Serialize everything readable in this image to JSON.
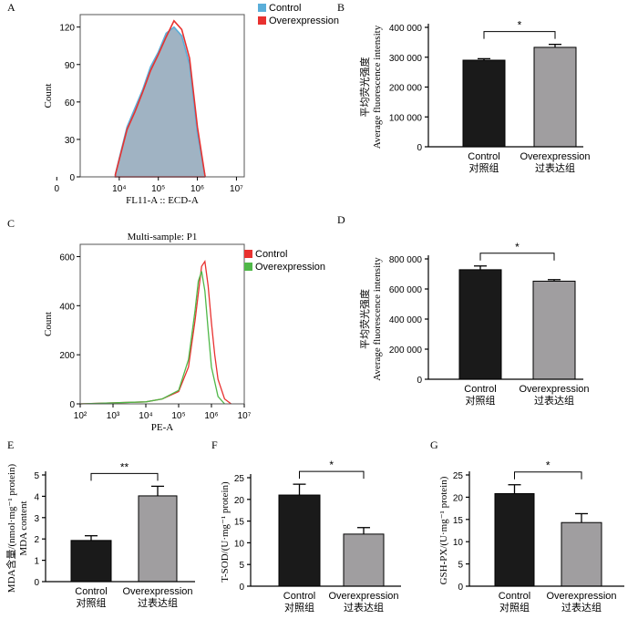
{
  "chart_data": [
    {
      "id": "A",
      "panel_label": "A",
      "type": "area",
      "xlabel": "FL11-A :: ECD-A",
      "ylabel": "Count",
      "x_ticks": [
        "0",
        "10⁴",
        "10⁵",
        "10⁶",
        "10⁷"
      ],
      "y_ticks": [
        0,
        30,
        60,
        90,
        120
      ],
      "ylim": [
        0,
        130
      ],
      "legend": [
        {
          "name": "Control",
          "color": "#5aaed9"
        },
        {
          "name": "Overexpression",
          "color": "#e8312f"
        }
      ],
      "series": [
        {
          "name": "Control",
          "color": "#5aaed9",
          "decades": [
            3.9,
            4.0,
            4.2,
            4.4,
            4.6,
            4.8,
            5.0,
            5.2,
            5.4,
            5.6,
            5.8,
            6.0,
            6.2
          ],
          "counts": [
            2,
            15,
            40,
            55,
            70,
            88,
            100,
            115,
            120,
            113,
            90,
            35,
            0
          ]
        },
        {
          "name": "Overexpression",
          "color": "#e8312f",
          "decades": [
            3.9,
            4.0,
            4.2,
            4.4,
            4.6,
            4.8,
            5.0,
            5.2,
            5.4,
            5.6,
            5.8,
            6.0,
            6.2
          ],
          "counts": [
            2,
            14,
            38,
            52,
            68,
            85,
            98,
            112,
            125,
            118,
            95,
            40,
            0
          ]
        }
      ]
    },
    {
      "id": "B",
      "panel_label": "B",
      "type": "bar",
      "ylabel": "平均荧光强度",
      "ylabel2": "Average fluorescence intensity",
      "y_ticks": [
        "0",
        "100 000",
        "200 000",
        "300 000",
        "400 000"
      ],
      "ylim": [
        0,
        400000
      ],
      "categories": [
        "Control",
        "Overexpression"
      ],
      "categories_cn": [
        "对照组",
        "过表达组"
      ],
      "values": [
        290000,
        333000
      ],
      "errors": [
        5000,
        10000
      ],
      "bar_colors": [
        "#1a1a1a",
        "#a09ea0"
      ],
      "significance": "*"
    },
    {
      "id": "C",
      "panel_label": "C",
      "type": "line",
      "title": "Multi-sample: P1",
      "xlabel": "PE-A",
      "ylabel": "Count",
      "x_ticks": [
        "10²",
        "10³",
        "10⁴",
        "10⁵",
        "10⁶",
        "10⁷"
      ],
      "y_ticks": [
        0,
        200,
        400,
        600
      ],
      "ylim": [
        0,
        650
      ],
      "legend": [
        {
          "name": "Control",
          "color": "#e8312f"
        },
        {
          "name": "Overexpression",
          "color": "#4fb848"
        }
      ],
      "series": [
        {
          "name": "Control",
          "color": "#e8312f",
          "decades": [
            2.0,
            4.0,
            4.5,
            5.0,
            5.3,
            5.5,
            5.7,
            5.8,
            5.9,
            6.0,
            6.1,
            6.2,
            6.4,
            6.6
          ],
          "counts": [
            0,
            8,
            20,
            50,
            150,
            340,
            560,
            580,
            480,
            330,
            200,
            100,
            20,
            0
          ]
        },
        {
          "name": "Overexpression",
          "color": "#4fb848",
          "decades": [
            2.0,
            4.0,
            4.5,
            5.0,
            5.3,
            5.5,
            5.6,
            5.7,
            5.8,
            5.9,
            6.0,
            6.2,
            6.4
          ],
          "counts": [
            0,
            8,
            20,
            55,
            180,
            380,
            500,
            540,
            460,
            300,
            150,
            30,
            0
          ]
        }
      ]
    },
    {
      "id": "D",
      "panel_label": "D",
      "type": "bar",
      "ylabel": "平均荧光强度",
      "ylabel2": "Average fluorescence intensity",
      "y_ticks": [
        "0",
        "200 000",
        "400 000",
        "600 000",
        "800 000"
      ],
      "ylim": [
        0,
        800000
      ],
      "categories": [
        "Control",
        "Overexpression"
      ],
      "categories_cn": [
        "对照组",
        "过表达组"
      ],
      "values": [
        728000,
        652000
      ],
      "errors": [
        25000,
        10000
      ],
      "bar_colors": [
        "#1a1a1a",
        "#a09ea0"
      ],
      "significance": "*"
    },
    {
      "id": "E",
      "panel_label": "E",
      "type": "bar",
      "ylabel": "MDA含量/(nmol·mg⁻¹ protein)",
      "ylabel2": "MDA content",
      "y_ticks": [
        "0",
        "1",
        "2",
        "3",
        "4",
        "5"
      ],
      "ylim": [
        0,
        5
      ],
      "categories": [
        "Control",
        "Overexpression"
      ],
      "categories_cn": [
        "对照组",
        "过表达组"
      ],
      "values": [
        1.93,
        4.02
      ],
      "errors": [
        0.22,
        0.45
      ],
      "bar_colors": [
        "#1a1a1a",
        "#a09ea0"
      ],
      "significance": "**"
    },
    {
      "id": "F",
      "panel_label": "F",
      "type": "bar",
      "ylabel": "T-SOD/(U·mg⁻¹ protein)",
      "y_ticks": [
        "0",
        "5",
        "10",
        "15",
        "20",
        "25"
      ],
      "ylim": [
        0,
        25
      ],
      "categories": [
        "Control",
        "Overexpression"
      ],
      "categories_cn": [
        "对照组",
        "过表达组"
      ],
      "values": [
        21.0,
        12.0
      ],
      "errors": [
        2.5,
        1.5
      ],
      "bar_colors": [
        "#1a1a1a",
        "#a09ea0"
      ],
      "significance": "*"
    },
    {
      "id": "G",
      "panel_label": "G",
      "type": "bar",
      "ylabel": "GSH-PX/(U·mg⁻¹ protein)",
      "y_ticks": [
        "0",
        "5",
        "10",
        "15",
        "20",
        "25"
      ],
      "ylim": [
        0,
        25
      ],
      "categories": [
        "Control",
        "Overexpression"
      ],
      "categories_cn": [
        "对照组",
        "过表达组"
      ],
      "values": [
        20.8,
        14.3
      ],
      "errors": [
        2.0,
        2.0
      ],
      "bar_colors": [
        "#1a1a1a",
        "#a09ea0"
      ],
      "significance": "*"
    }
  ]
}
